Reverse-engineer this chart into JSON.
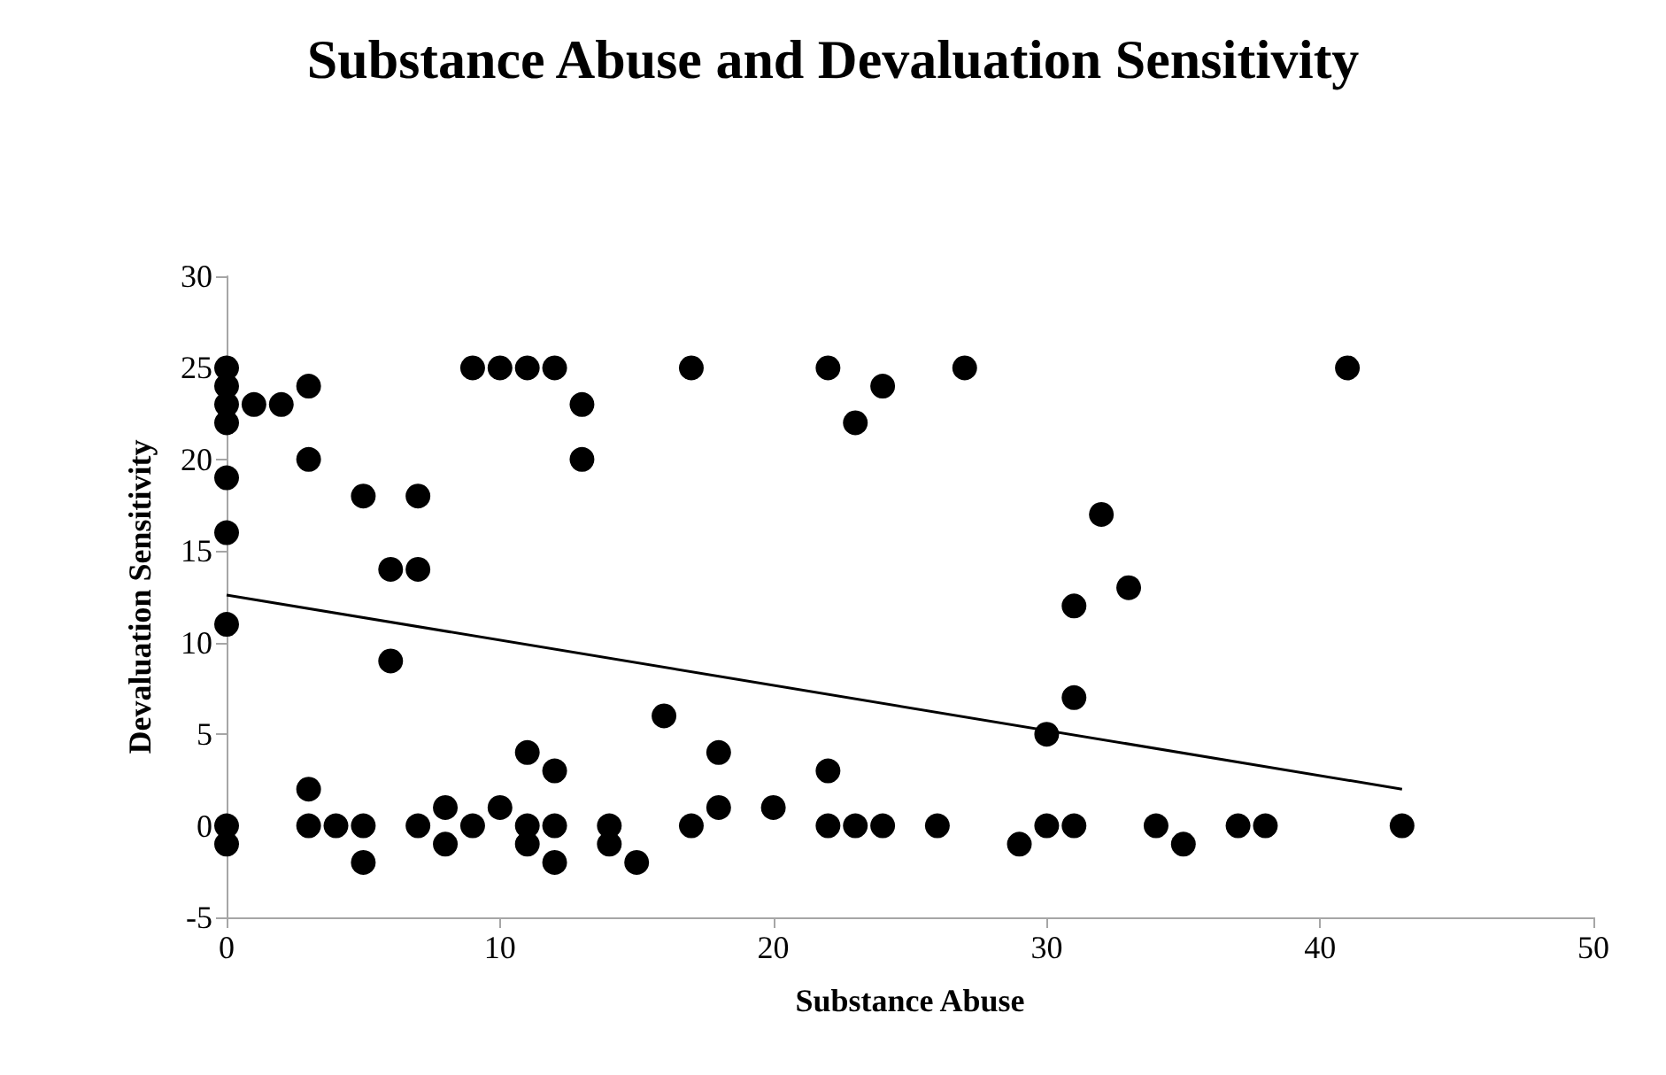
{
  "chart_data": {
    "type": "scatter",
    "title": "Substance Abuse and Devaluation Sensitivity",
    "xlabel": "Substance Abuse",
    "ylabel": "Devaluation Sensitivity",
    "xlim": [
      0,
      50
    ],
    "xticks": [
      0,
      10,
      20,
      30,
      40,
      50
    ],
    "ylim": [
      -5,
      30
    ],
    "yticks": [
      -5,
      0,
      5,
      10,
      15,
      20,
      25,
      30
    ],
    "grid": false,
    "marker": "circle",
    "series": [
      {
        "color": "#000000",
        "x": [
          0,
          0,
          0,
          0,
          0,
          0,
          0,
          0,
          0,
          1,
          2,
          3,
          3,
          3,
          3,
          4,
          5,
          5,
          5,
          6,
          6,
          7,
          7,
          7,
          8,
          8,
          9,
          9,
          10,
          10,
          11,
          11,
          11,
          11,
          12,
          12,
          12,
          12,
          13,
          13,
          14,
          14,
          15,
          16,
          17,
          17,
          18,
          18,
          20,
          22,
          22,
          22,
          23,
          23,
          24,
          24,
          26,
          27,
          29,
          30,
          30,
          31,
          31,
          31,
          32,
          33,
          34,
          35,
          37,
          38,
          41,
          43
        ],
        "values": [
          25,
          24,
          23,
          22,
          19,
          16,
          11,
          0,
          -1,
          23,
          23,
          24,
          20,
          2,
          0,
          0,
          18,
          0,
          -2,
          14,
          9,
          18,
          14,
          0,
          1,
          -1,
          25,
          0,
          25,
          1,
          25,
          4,
          0,
          -1,
          25,
          3,
          0,
          -2,
          23,
          20,
          0,
          -1,
          -2,
          6,
          25,
          0,
          4,
          1,
          1,
          25,
          3,
          0,
          22,
          0,
          24,
          0,
          0,
          25,
          -1,
          5,
          0,
          12,
          7,
          0,
          17,
          13,
          0,
          -1,
          0,
          0,
          25,
          0
        ]
      },
      {
        "type": "line",
        "color": "#000000",
        "marker": "none",
        "line_style": "solid",
        "x": [
          0,
          43
        ],
        "values": [
          12.6,
          2.0
        ]
      }
    ]
  }
}
